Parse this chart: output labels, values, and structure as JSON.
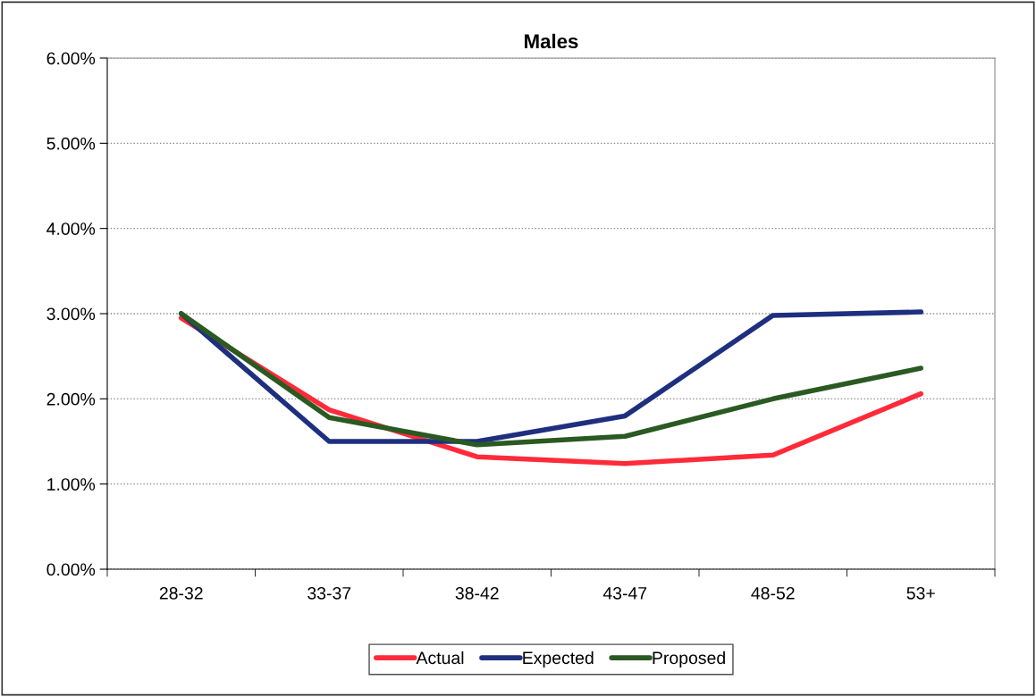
{
  "chart_data": {
    "type": "line",
    "title": "Males",
    "categories": [
      "28-32",
      "33-37",
      "38-42",
      "43-47",
      "48-52",
      "53+"
    ],
    "series": [
      {
        "name": "Actual",
        "color": "#ff2b3a",
        "values": [
          2.95,
          1.87,
          1.32,
          1.24,
          1.34,
          2.06
        ]
      },
      {
        "name": "Expected",
        "color": "#1f2f80",
        "values": [
          3.0,
          1.5,
          1.5,
          1.8,
          2.98,
          3.02
        ]
      },
      {
        "name": "Proposed",
        "color": "#2a5a22",
        "values": [
          3.0,
          1.78,
          1.46,
          1.56,
          2.0,
          2.36
        ]
      }
    ],
    "ylim": [
      0,
      6
    ],
    "yticks": [
      {
        "value": 0,
        "label": "0.00%"
      },
      {
        "value": 1,
        "label": "1.00%"
      },
      {
        "value": 2,
        "label": "2.00%"
      },
      {
        "value": 3,
        "label": "3.00%"
      },
      {
        "value": 4,
        "label": "4.00%"
      },
      {
        "value": 5,
        "label": "5.00%"
      },
      {
        "value": 6,
        "label": "6.00%"
      }
    ],
    "grid": "y",
    "legend": "bottom",
    "marker": "none",
    "line_style": "solid"
  }
}
